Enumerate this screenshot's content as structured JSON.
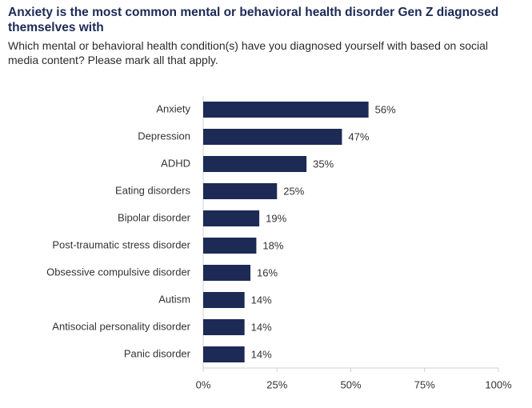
{
  "chart_data": {
    "type": "bar",
    "orientation": "horizontal",
    "title": "Anxiety is the most common mental or behavioral health disorder Gen Z diagnosed themselves with",
    "subtitle": "Which mental or behavioral health condition(s) have you diagnosed yourself with based on social media content? Please mark all that apply.",
    "categories": [
      "Anxiety",
      "Depression",
      "ADHD",
      "Eating disorders",
      "Bipolar disorder",
      "Post-traumatic stress disorder",
      "Obsessive compulsive disorder",
      "Autism",
      "Antisocial personality disorder",
      "Panic disorder"
    ],
    "values": [
      56,
      47,
      35,
      25,
      19,
      18,
      16,
      14,
      14,
      14
    ],
    "value_labels": [
      "56%",
      "47%",
      "35%",
      "25%",
      "19%",
      "18%",
      "16%",
      "14%",
      "14%",
      "14%"
    ],
    "color": "#1c2a55",
    "xlim": [
      0,
      100
    ],
    "xticks": [
      {
        "value": 0,
        "label": "0%"
      },
      {
        "value": 25,
        "label": "25%"
      },
      {
        "value": 50,
        "label": "50%"
      },
      {
        "value": 75,
        "label": "75%"
      },
      {
        "value": 100,
        "label": "100%"
      }
    ]
  }
}
